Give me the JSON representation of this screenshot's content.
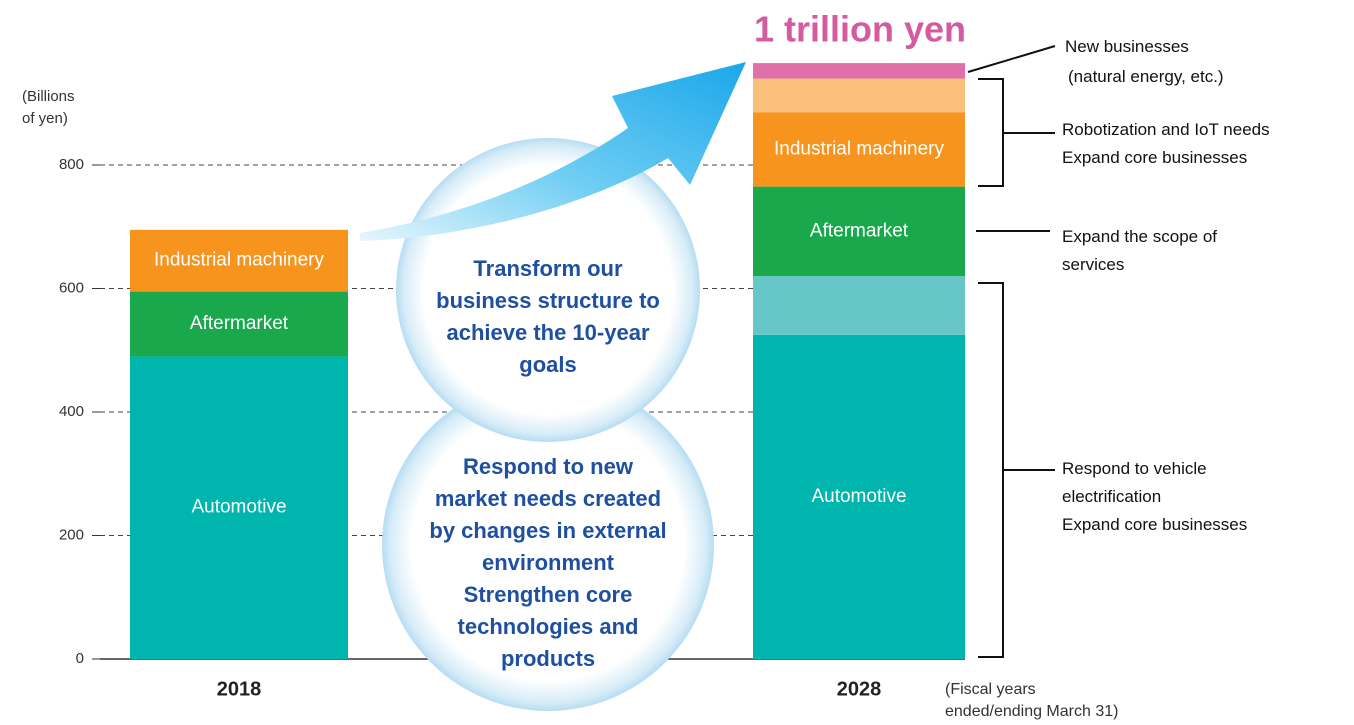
{
  "chart_data": {
    "type": "stacked_bar",
    "title": "1 trillion yen",
    "y_axis_label": [
      "(Billions",
      "of yen)"
    ],
    "x_axis_note": [
      "(Fiscal years",
      "ended/ending March 31)"
    ],
    "categories": [
      "2018",
      "2028"
    ],
    "ylim": [
      0,
      1000
    ],
    "yticks": [
      0,
      200,
      400,
      600,
      800
    ],
    "grid": true,
    "series": [
      {
        "name": "Automotive",
        "color": "#00b5ad",
        "values": [
          490,
          525
        ]
      },
      {
        "color": "#66c6c8",
        "values": [
          null,
          95
        ]
      },
      {
        "name": "Aftermarket",
        "color": "#1aa84d",
        "values": [
          105,
          145
        ]
      },
      {
        "name": "Industrial machinery",
        "color": "#f7941d",
        "values": [
          100,
          120
        ]
      },
      {
        "color": "#fbbf7c",
        "values": [
          null,
          55
        ]
      },
      {
        "color": "#e070aa",
        "values": [
          null,
          25
        ]
      }
    ],
    "annotations": [
      {
        "lines": [
          "New businesses",
          "(natural energy, etc.)"
        ]
      },
      {
        "lines": [
          "Robotization and IoT needs",
          "Expand core businesses"
        ]
      },
      {
        "lines": [
          "Expand the scope of",
          "services"
        ]
      },
      {
        "lines": [
          "Respond to vehicle",
          "electrification",
          "Expand core businesses"
        ]
      }
    ],
    "circles": [
      {
        "lines": [
          "Transform our",
          "business structure to",
          "achieve the 10-year",
          "goals"
        ]
      },
      {
        "lines": [
          "Respond to new",
          "market needs created",
          "by changes in external",
          "environment",
          "Strengthen core",
          "technologies and",
          "products"
        ]
      }
    ]
  }
}
